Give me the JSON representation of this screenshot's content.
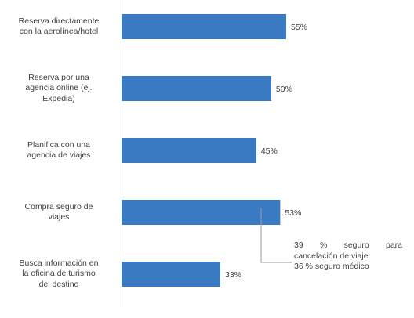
{
  "chart_data": {
    "type": "bar",
    "orientation": "horizontal",
    "categories": [
      [
        "Reserva directamente",
        "con la aerolínea/hotel"
      ],
      [
        "Reserva por una",
        "agencia online (ej.",
        "Expedia)"
      ],
      [
        "Planifica con una",
        "agencia de viajes"
      ],
      [
        "Compra seguro de",
        "viajes"
      ],
      [
        "Busca información en",
        "la oficina de turismo",
        "del destino"
      ]
    ],
    "values": [
      55,
      50,
      45,
      53,
      33
    ],
    "value_labels": [
      "55%",
      "50%",
      "45%",
      "53%",
      "33%"
    ],
    "bar_color": "#3a7ac2",
    "title": "",
    "xlabel": "",
    "ylabel": "",
    "grid": false,
    "annotation": {
      "attached_to": "Compra seguro de viajes",
      "lines": [
        "39 % seguro para",
        "cancelación de viaje",
        "36 % seguro médico"
      ]
    }
  }
}
